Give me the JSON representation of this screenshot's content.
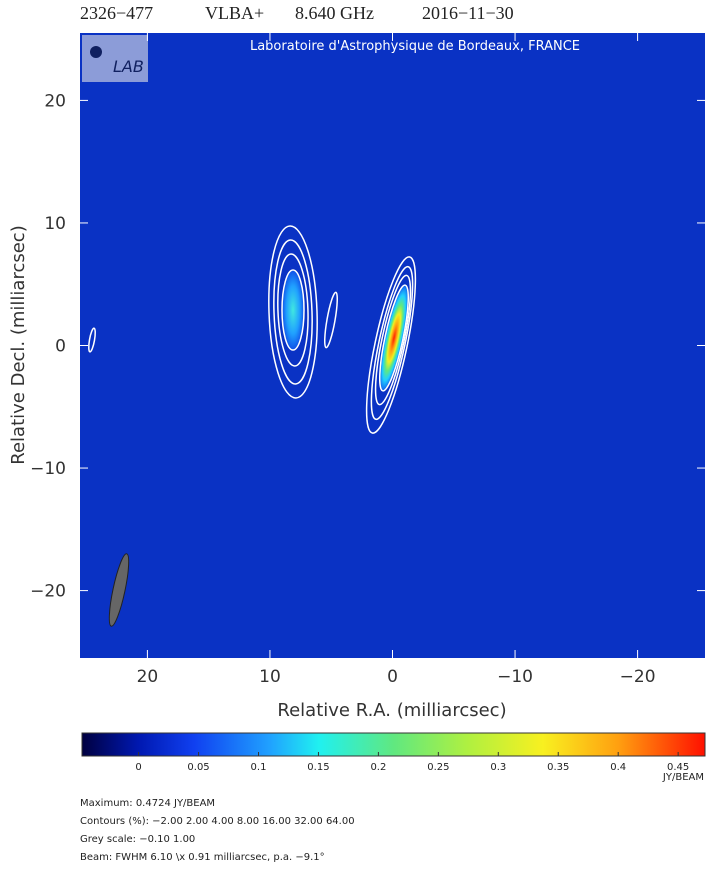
{
  "header": {
    "source": "2326−477",
    "array": "VLBA+",
    "frequency": "8.640 GHz",
    "date": "2016−11−30"
  },
  "credit": "Laboratoire d'Astrophysique de Bordeaux, FRANCE",
  "logo": "LAB",
  "chart_data": {
    "type": "image",
    "xlabel": "Relative R.A. (milliarcsec)",
    "ylabel": "Relative Decl. (milliarcsec)",
    "xlim": [
      25.5,
      -25.5
    ],
    "ylim": [
      -25.5,
      25.5
    ],
    "xticks": [
      20,
      10,
      0,
      {
        "value": -10,
        "label": "−10"
      },
      {
        "value": -20,
        "label": "−20"
      }
    ],
    "yticks": [
      {
        "value": -20,
        "label": "−20"
      },
      {
        "value": -10,
        "label": "−10"
      },
      0,
      10,
      20
    ]
  },
  "colorbar": {
    "label": "JY/BEAM",
    "lim": [
      -0.0472,
      0.4724
    ],
    "ticks": [
      0,
      0.05,
      0.1,
      0.15,
      0.2,
      0.25,
      0.3,
      0.35,
      0.4,
      0.45
    ]
  },
  "notes": [
    "Maximum: 0.4724 JY/BEAM",
    "Contours (%): −2.00 2.00 4.00 8.00 16.00 32.00 64.00",
    "Grey scale: −0.10 1.00",
    "Beam: FWHM 6.10 \\x 0.91 milliarcsec, p.a. −9.1°"
  ]
}
